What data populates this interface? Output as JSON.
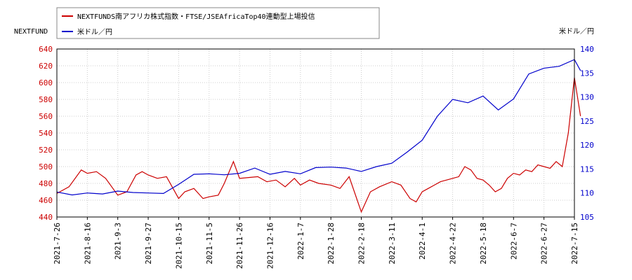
{
  "chart_data": {
    "type": "line",
    "y_left_label": "NEXTFUND",
    "y_right_label": "米ドル／円",
    "y_left_ticks": [
      440,
      460,
      480,
      500,
      520,
      540,
      560,
      580,
      600,
      620,
      640
    ],
    "y_right_ticks": [
      105,
      110,
      115,
      120,
      125,
      130,
      135,
      140
    ],
    "ylim_left": [
      440,
      640
    ],
    "ylim_right": [
      105,
      140
    ],
    "grid": true,
    "legend_position": "top-left",
    "x_tick_labels": [
      "2021-7-26",
      "2021-8-16",
      "2021-9-3",
      "2021-9-27",
      "2021-10-15",
      "2021-11-5",
      "2021-11-26",
      "2021-12-16",
      "2022-1-7",
      "2022-1-28",
      "2022-2-18",
      "2022-3-11",
      "2022-4-1",
      "2022-4-22",
      "2022-5-18",
      "2022-6-7",
      "2022-6-27",
      "2022-7-15"
    ],
    "series": [
      {
        "name": "NEXTFUNDS南アフリカ株式指数・FTSE/JSEAfricaTop40連動型上場投信",
        "axis": "left",
        "color": "#cc0000",
        "x": [
          0,
          0.4,
          0.8,
          1.0,
          1.3,
          1.6,
          2.0,
          2.3,
          2.6,
          2.8,
          3.0,
          3.3,
          3.6,
          4.0,
          4.2,
          4.5,
          4.8,
          5.0,
          5.3,
          5.5,
          5.8,
          6.0,
          6.3,
          6.6,
          6.9,
          7.2,
          7.5,
          7.8,
          8.0,
          8.3,
          8.6,
          9.0,
          9.3,
          9.6,
          10.0,
          10.3,
          10.6,
          11.0,
          11.3,
          11.6,
          11.8,
          12.0,
          12.2,
          12.4,
          12.6,
          12.8,
          13.0,
          13.2,
          13.4,
          13.6,
          13.8,
          14.0,
          14.2,
          14.4,
          14.6,
          14.8,
          15.0,
          15.2,
          15.4,
          15.6,
          15.8,
          16.0,
          16.2,
          16.4,
          16.6,
          16.8,
          17.0,
          17.2
        ],
        "values": [
          468,
          476,
          496,
          492,
          494,
          486,
          466,
          470,
          490,
          494,
          490,
          486,
          488,
          462,
          470,
          474,
          462,
          464,
          466,
          480,
          506,
          486,
          487,
          488,
          482,
          484,
          476,
          486,
          478,
          484,
          480,
          478,
          474,
          488,
          446,
          470,
          476,
          482,
          478,
          462,
          458,
          470,
          474,
          478,
          482,
          484,
          486,
          488,
          500,
          496,
          486,
          484,
          478,
          470,
          474,
          486,
          492,
          490,
          496,
          494,
          502,
          500,
          498,
          506,
          500,
          540,
          606,
          560
        ],
        "note": "values approximate"
      },
      {
        "name": "米ドル／円",
        "axis": "right",
        "color": "#0000cc",
        "x": [
          0,
          0.5,
          1.0,
          1.5,
          2.0,
          2.5,
          3.0,
          3.5,
          4.0,
          4.5,
          5.0,
          5.5,
          6.0,
          6.5,
          7.0,
          7.5,
          8.0,
          8.5,
          9.0,
          9.5,
          10.0,
          10.5,
          11.0,
          11.5,
          12.0,
          12.5,
          13.0,
          13.5,
          14.0,
          14.5,
          15.0,
          15.5,
          16.0,
          16.5,
          17.0,
          17.2
        ],
        "values": [
          110.2,
          109.6,
          110.0,
          109.8,
          110.4,
          110.1,
          110.0,
          109.9,
          111.8,
          113.9,
          114.0,
          113.8,
          114.1,
          115.2,
          113.9,
          114.5,
          114.0,
          115.3,
          115.4,
          115.2,
          114.5,
          115.5,
          116.2,
          118.5,
          121.0,
          126.0,
          129.5,
          128.8,
          130.2,
          127.3,
          129.6,
          134.8,
          136.0,
          136.4,
          137.8,
          135.5
        ]
      }
    ]
  }
}
